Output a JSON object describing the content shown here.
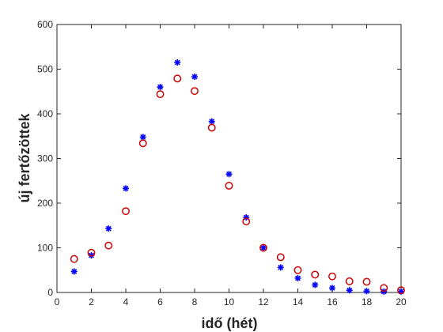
{
  "chart_data": {
    "type": "scatter",
    "title": "",
    "xlabel": "idő (hét)",
    "ylabel": "új fertőzöttek",
    "xlim": [
      0,
      20
    ],
    "ylim": [
      0,
      600
    ],
    "xticks": [
      0,
      2,
      4,
      6,
      8,
      10,
      12,
      14,
      16,
      18,
      20
    ],
    "yticks": [
      0,
      100,
      200,
      300,
      400,
      500,
      600
    ],
    "grid": false,
    "series": [
      {
        "marker": "asterisk",
        "color": "#0000ff",
        "x": [
          1,
          2,
          3,
          4,
          5,
          6,
          7,
          8,
          9,
          10,
          11,
          12,
          13,
          14,
          15,
          16,
          17,
          18,
          19,
          20
        ],
        "y": [
          47,
          83,
          143,
          233,
          348,
          460,
          515,
          483,
          383,
          265,
          168,
          100,
          56,
          32,
          17,
          10,
          5,
          3,
          2,
          2
        ]
      },
      {
        "marker": "circle",
        "color": "#cc0000",
        "x": [
          1,
          2,
          3,
          4,
          5,
          6,
          7,
          8,
          9,
          10,
          11,
          12,
          13,
          14,
          15,
          16,
          17,
          18,
          19,
          20
        ],
        "y": [
          75,
          89,
          105,
          182,
          334,
          444,
          479,
          451,
          369,
          239,
          159,
          100,
          79,
          50,
          40,
          36,
          25,
          24,
          10,
          5
        ]
      }
    ]
  }
}
